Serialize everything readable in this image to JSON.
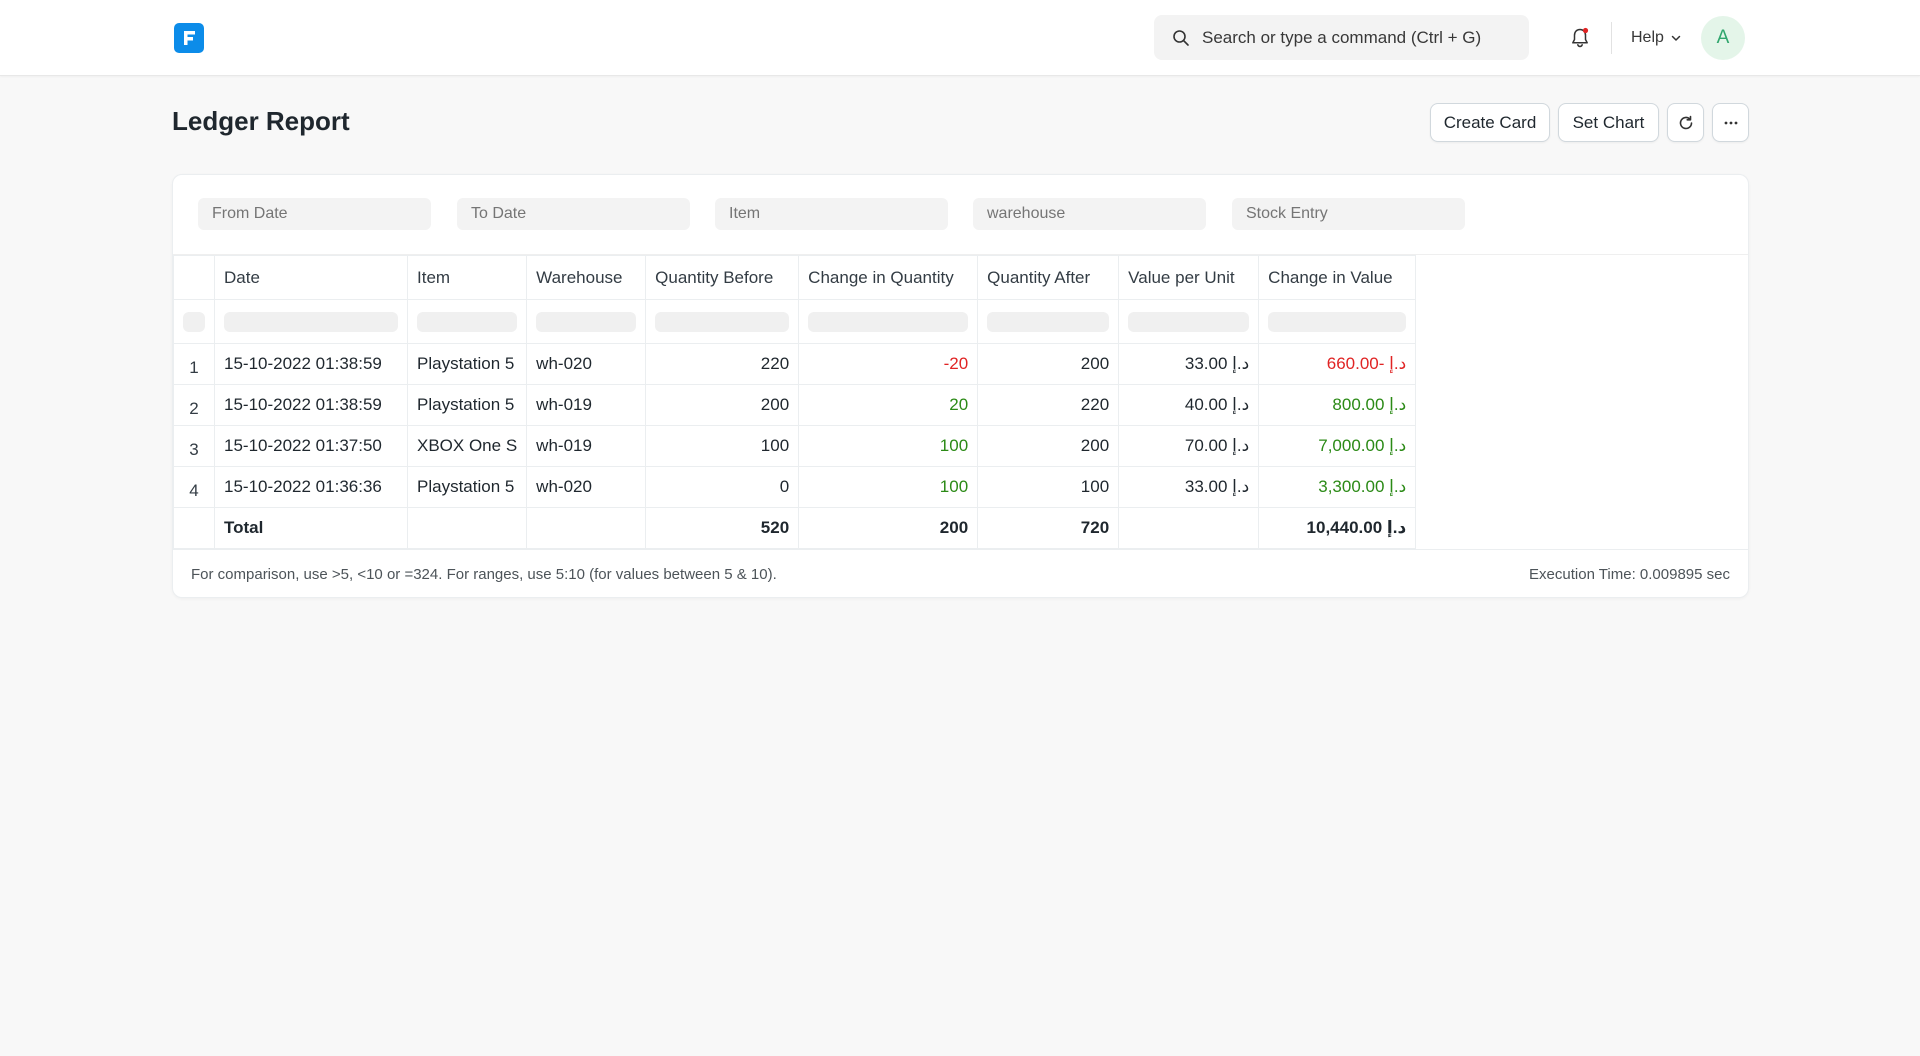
{
  "navbar": {
    "search_placeholder": "Search or type a command (Ctrl + G)",
    "help_label": "Help",
    "avatar_initial": "A"
  },
  "page": {
    "title": "Ledger Report",
    "buttons": {
      "create_card": "Create Card",
      "set_chart": "Set Chart"
    }
  },
  "filters": {
    "from_date": "From Date",
    "to_date": "To Date",
    "item": "Item",
    "warehouse": "warehouse",
    "stock_entry": "Stock Entry"
  },
  "table": {
    "columns": [
      "Date",
      "Item",
      "Warehouse",
      "Quantity Before",
      "Change in Quantity",
      "Quantity After",
      "Value per Unit",
      "Change in Value"
    ],
    "rows": [
      {
        "idx": "1",
        "date": "15-10-2022 01:38:59",
        "item": "Playstation 5",
        "warehouse": "wh-020",
        "qty_before": "220",
        "qty_change": "-20",
        "qty_after": "200",
        "value_per_unit": "33.00 د.إ",
        "value_change": "660.00- د.إ"
      },
      {
        "idx": "2",
        "date": "15-10-2022 01:38:59",
        "item": "Playstation 5",
        "warehouse": "wh-019",
        "qty_before": "200",
        "qty_change": "20",
        "qty_after": "220",
        "value_per_unit": "40.00 د.إ",
        "value_change": "800.00 د.إ"
      },
      {
        "idx": "3",
        "date": "15-10-2022 01:37:50",
        "item": "XBOX One S",
        "warehouse": "wh-019",
        "qty_before": "100",
        "qty_change": "100",
        "qty_after": "200",
        "value_per_unit": "70.00 د.إ",
        "value_change": "7,000.00 د.إ"
      },
      {
        "idx": "4",
        "date": "15-10-2022 01:36:36",
        "item": "Playstation 5",
        "warehouse": "wh-020",
        "qty_before": "0",
        "qty_change": "100",
        "qty_after": "100",
        "value_per_unit": "33.00 د.إ",
        "value_change": "3,300.00 د.إ"
      }
    ],
    "total": {
      "label": "Total",
      "qty_before": "520",
      "qty_change": "200",
      "qty_after": "720",
      "value_change": "10,440.00 د.إ"
    }
  },
  "footer": {
    "note": "For comparison, use >5, <10 or =324. For ranges, use 5:10 (for values between 5 & 10).",
    "execution_time": "Execution Time: 0.009895 sec"
  },
  "colors": {
    "brand": "#0c8ce9",
    "negative": "#e02424",
    "positive": "#2b8a16",
    "notification_dot": "#e02424"
  },
  "icons": {
    "logo": "frappe-logo-icon",
    "search": "search-icon",
    "bell": "bell-icon",
    "help_chevron": "chevron-down-icon",
    "refresh": "refresh-icon",
    "more": "more-horizontal-icon"
  }
}
